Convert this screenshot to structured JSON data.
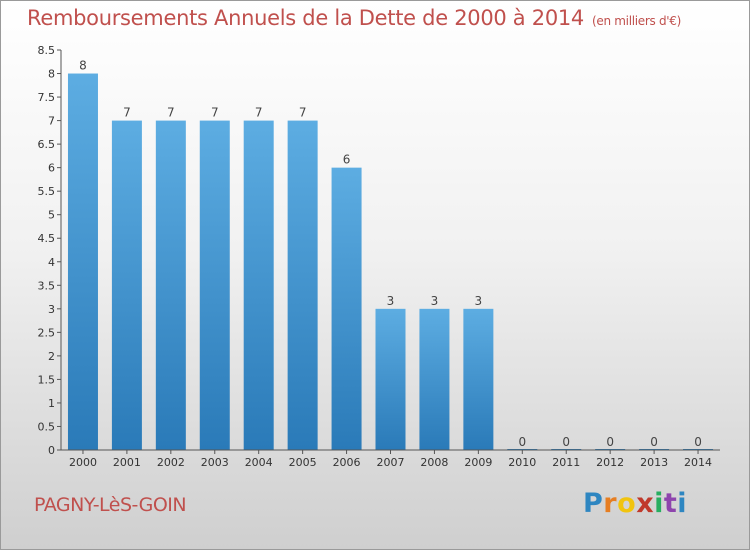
{
  "title": "Remboursements Annuels de la Dette de 2000 à 2014",
  "unit": "(en milliers d'€)",
  "town": "PAGNY-LèS-GOIN",
  "logo": {
    "letters": [
      "P",
      "r",
      "o",
      "x",
      "i",
      "t",
      "i"
    ],
    "colors": [
      "#2e86c1",
      "#e67e22",
      "#f1c40f",
      "#c0392b",
      "#27ae60",
      "#8e44ad",
      "#2e86c1"
    ]
  },
  "colors": {
    "bar_top": "#5dade2",
    "bar_bottom": "#2a7ab8",
    "title": "#c0504d"
  },
  "chart_data": {
    "type": "bar",
    "categories": [
      "2000",
      "2001",
      "2002",
      "2003",
      "2004",
      "2005",
      "2006",
      "2007",
      "2008",
      "2009",
      "2010",
      "2011",
      "2012",
      "2013",
      "2014"
    ],
    "values": [
      8,
      7,
      7,
      7,
      7,
      7,
      6,
      3,
      3,
      3,
      0,
      0,
      0,
      0,
      0
    ],
    "data_labels": [
      "8",
      "7",
      "7",
      "7",
      "7",
      "7",
      "6",
      "3",
      "3",
      "3",
      "0",
      "0",
      "0",
      "0",
      "0"
    ],
    "ylim": [
      0,
      8.5
    ],
    "yticks": [
      "0",
      "0.5",
      "1",
      "1.5",
      "2",
      "2.5",
      "3",
      "3.5",
      "4",
      "4.5",
      "5",
      "5.5",
      "6",
      "6.5",
      "7",
      "7.5",
      "8",
      "8.5"
    ],
    "ytick_values": [
      0,
      0.5,
      1,
      1.5,
      2,
      2.5,
      3,
      3.5,
      4,
      4.5,
      5,
      5.5,
      6,
      6.5,
      7,
      7.5,
      8,
      8.5
    ],
    "grid": false,
    "legend": "none"
  }
}
